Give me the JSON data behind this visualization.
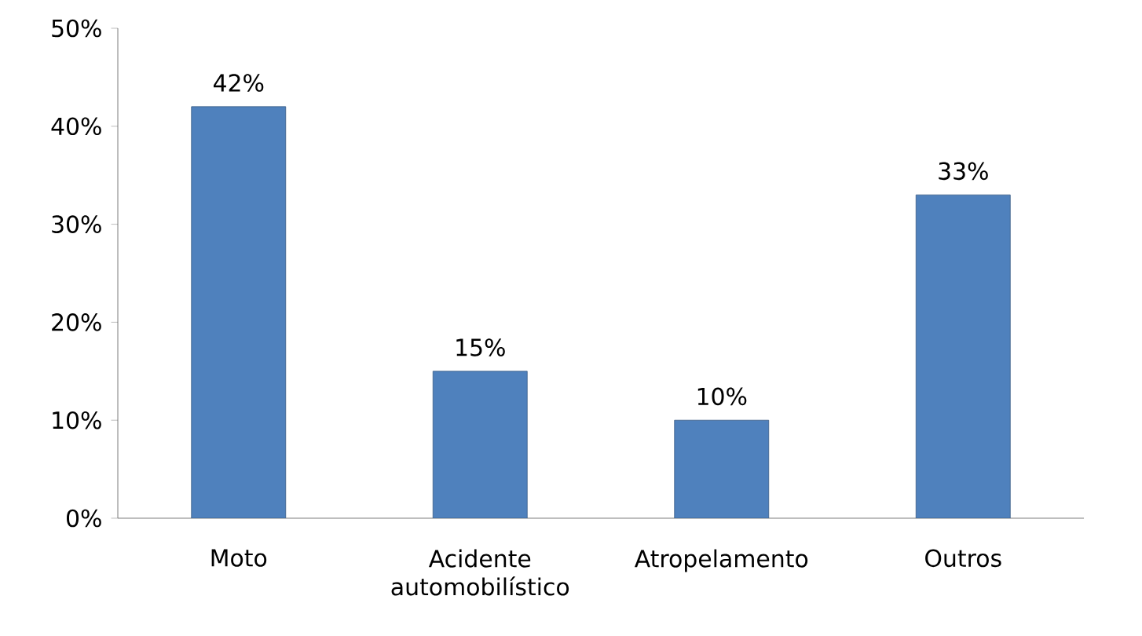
{
  "chart_data": {
    "type": "bar",
    "categories": [
      "Moto",
      "Acidente automobilístico",
      "Atropelamento",
      "Outros"
    ],
    "values": [
      42,
      15,
      10,
      33
    ],
    "value_labels": [
      "42%",
      "15%",
      "10%",
      "33%"
    ],
    "color": "#4f81bd",
    "ylim": [
      0,
      50
    ],
    "yticks": [
      {
        "value": 0,
        "label": "0%"
      },
      {
        "value": 10,
        "label": "10%"
      },
      {
        "value": 20,
        "label": "20%"
      },
      {
        "value": 30,
        "label": "30%"
      },
      {
        "value": 40,
        "label": "40%"
      },
      {
        "value": 50,
        "label": "50%"
      }
    ]
  }
}
